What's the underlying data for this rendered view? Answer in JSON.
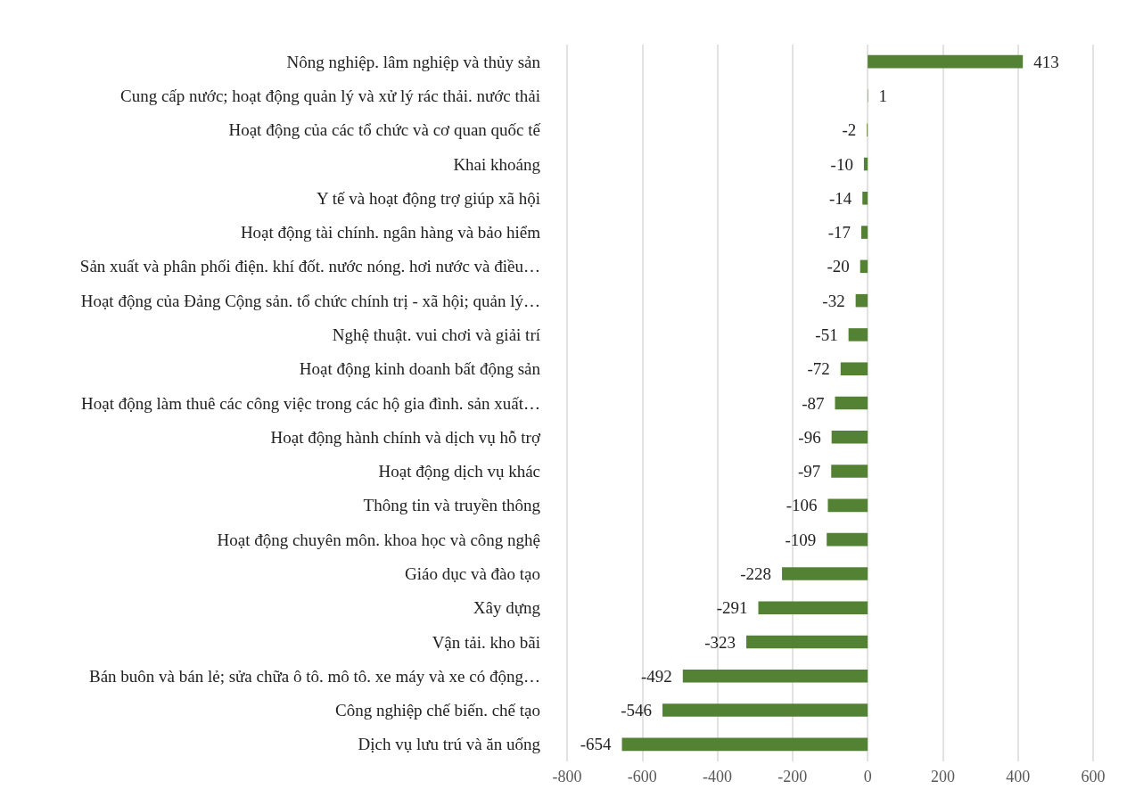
{
  "chart_data": {
    "type": "bar",
    "orientation": "horizontal",
    "categories": [
      "Nông nghiệp. lâm nghiệp và thủy sản",
      "Cung cấp nước; hoạt động quản lý và xử lý rác thải. nước thải",
      "Hoạt động của các tổ chức và cơ quan quốc tế",
      "Khai khoáng",
      "Y tế và hoạt động trợ giúp xã hội",
      "Hoạt động tài chính. ngân hàng và bảo hiểm",
      "Sản xuất và phân phối điện. khí đốt. nước nóng. hơi nước và điều…",
      "Hoạt động của Đảng Cộng sản. tổ chức chính trị - xã hội; quản lý…",
      "Nghệ thuật. vui chơi và giải trí",
      "Hoạt động kinh doanh bất động sản",
      "Hoạt động làm thuê các công việc trong các hộ gia đình. sản xuất…",
      "Hoạt động hành chính và dịch vụ hỗ trợ",
      "Hoạt động dịch vụ khác",
      "Thông tin và truyền thông",
      "Hoạt động chuyên môn. khoa học và công nghệ",
      "Giáo dục và đào tạo",
      "Xây dựng",
      "Vận tải. kho bãi",
      "Bán buôn và bán lẻ; sửa chữa ô tô. mô tô. xe máy và xe có động…",
      "Công nghiệp chế biến. chế tạo",
      "Dịch vụ lưu trú và ăn uống"
    ],
    "values": [
      413,
      1,
      -2,
      -10,
      -14,
      -17,
      -20,
      -32,
      -51,
      -72,
      -87,
      -96,
      -97,
      -106,
      -109,
      -228,
      -291,
      -323,
      -492,
      -546,
      -654
    ],
    "color": "#548235",
    "xlim": [
      -800,
      600
    ],
    "xticks": [
      -800,
      -600,
      -400,
      -200,
      0,
      200,
      400,
      600
    ],
    "grid": "x",
    "data_labels": true
  }
}
